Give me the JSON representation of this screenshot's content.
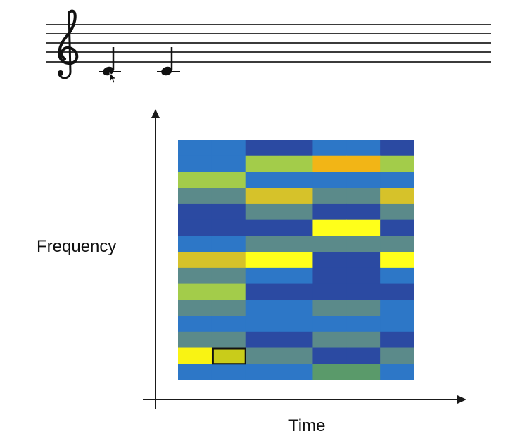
{
  "axes": {
    "ylabel": "Frequency",
    "xlabel": "Time"
  },
  "colors": {
    "staff_line": "#3b3b3b",
    "note": "#111111",
    "axis": "#1a1a1a",
    "highlight_border": "#111111",
    "palette": {
      "navy": "#2b4aa2",
      "blue": "#2d77c7",
      "teal": "#5b8a8a",
      "lime": "#a3cc4a",
      "gold": "#d6c22a",
      "orange": "#f2b516",
      "yellow": "#ffff1a",
      "bright_yellow": "#f9f313",
      "olive": "#c9cc1a",
      "green": "#5a9a6a"
    }
  },
  "staff": {
    "clef": "treble-clef",
    "notes": [
      "quarter-note",
      "quarter-note"
    ]
  },
  "heatmap": {
    "columns": 7,
    "rows": [
      [
        "blue",
        "blue",
        "navy",
        "navy",
        "blue",
        "blue",
        "navy"
      ],
      [
        "blue",
        "blue",
        "lime",
        "lime",
        "orange",
        "orange",
        "lime"
      ],
      [
        "lime",
        "lime",
        "blue",
        "blue",
        "blue",
        "blue",
        "blue"
      ],
      [
        "teal",
        "teal",
        "gold",
        "gold",
        "teal",
        "teal",
        "gold"
      ],
      [
        "navy",
        "navy",
        "teal",
        "teal",
        "navy",
        "navy",
        "teal"
      ],
      [
        "navy",
        "navy",
        "navy",
        "navy",
        "yellow",
        "yellow",
        "navy"
      ],
      [
        "blue",
        "blue",
        "teal",
        "teal",
        "teal",
        "teal",
        "teal"
      ],
      [
        "gold",
        "gold",
        "yellow",
        "yellow",
        "navy",
        "navy",
        "yellow"
      ],
      [
        "teal",
        "teal",
        "blue",
        "blue",
        "navy",
        "navy",
        "blue"
      ],
      [
        "lime",
        "lime",
        "navy",
        "navy",
        "navy",
        "navy",
        "navy"
      ],
      [
        "teal",
        "teal",
        "blue",
        "blue",
        "teal",
        "teal",
        "blue"
      ],
      [
        "blue",
        "blue",
        "blue",
        "blue",
        "blue",
        "blue",
        "blue"
      ],
      [
        "teal",
        "teal",
        "navy",
        "navy",
        "teal",
        "teal",
        "navy"
      ],
      [
        "bright_yellow",
        "olive",
        "teal",
        "teal",
        "navy",
        "navy",
        "teal"
      ],
      [
        "blue",
        "blue",
        "blue",
        "blue",
        "green",
        "green",
        "blue"
      ]
    ],
    "highlight": {
      "row": 13,
      "col": 1
    }
  }
}
